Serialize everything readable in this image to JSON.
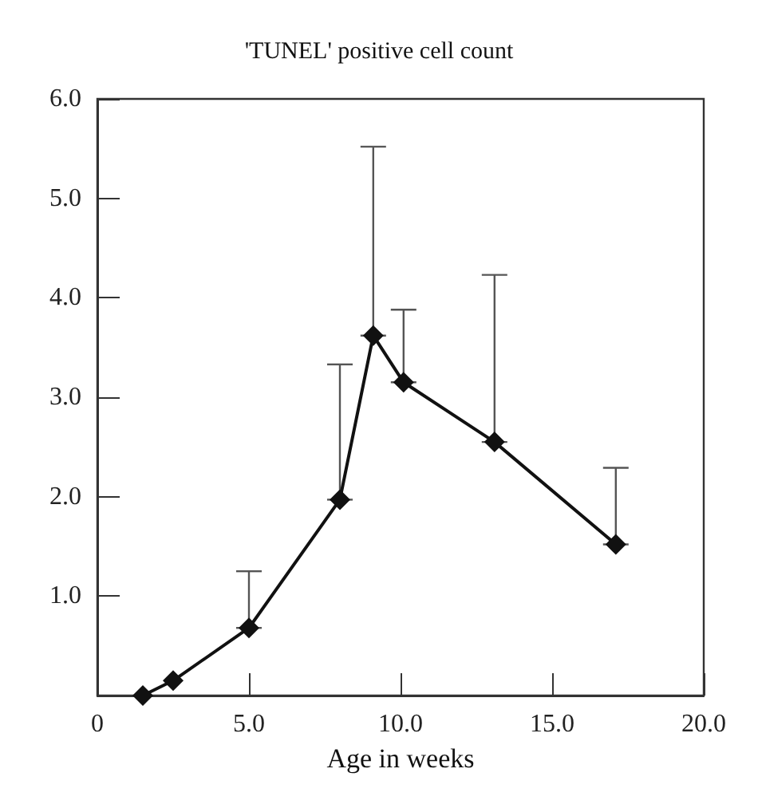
{
  "chart_data": {
    "type": "line",
    "title": "'TUNEL' positive cell count",
    "xlabel": "Age in weeks",
    "x": [
      1.5,
      2.5,
      5.0,
      8.0,
      9.1,
      10.1,
      13.1,
      17.1
    ],
    "series": [
      {
        "color": "#111111",
        "values": [
          0.0,
          0.15,
          0.68,
          1.97,
          3.62,
          3.15,
          2.55,
          1.52
        ],
        "errors": [
          null,
          null,
          [
            0.68,
            1.25
          ],
          [
            1.97,
            3.33
          ],
          [
            3.62,
            5.52
          ],
          [
            3.15,
            3.88
          ],
          [
            2.55,
            4.23
          ],
          [
            1.52,
            2.29
          ]
        ]
      }
    ],
    "xlim": [
      0,
      20
    ],
    "xticks": [
      0,
      {
        "value": 5,
        "label": "5.0"
      },
      {
        "value": 10,
        "label": "10.0"
      },
      {
        "value": 15,
        "label": "15.0"
      },
      {
        "value": 20,
        "label": "20.0"
      }
    ],
    "ylim": [
      0,
      6
    ],
    "yticks": [
      {
        "value": 1,
        "label": "1.0"
      },
      {
        "value": 2,
        "label": "2.0"
      },
      {
        "value": 3,
        "label": "3.0"
      },
      {
        "value": 4,
        "label": "4.0"
      },
      {
        "value": 5,
        "label": "5.0"
      },
      {
        "value": 6,
        "label": "6.0"
      }
    ],
    "grid": false,
    "marker": "diamond",
    "line_style": "solid"
  }
}
